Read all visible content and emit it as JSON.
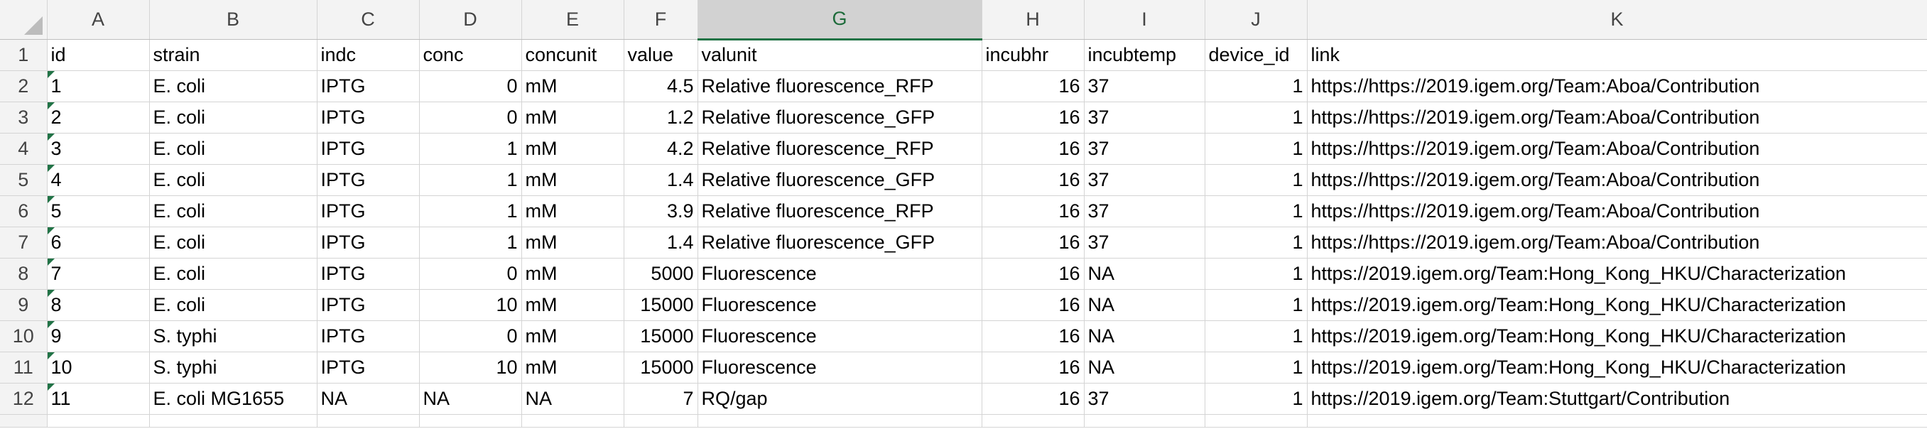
{
  "sheet": {
    "columns": [
      "A",
      "B",
      "C",
      "D",
      "E",
      "F",
      "G",
      "H",
      "I",
      "J",
      "K"
    ],
    "selected_column": "G",
    "rows": [
      {
        "n": "1",
        "cells": [
          "id",
          "strain",
          "indc",
          "conc",
          "concunit",
          "value",
          "valunit",
          "incubhr",
          "incubtemp",
          "device_id",
          "link"
        ]
      },
      {
        "n": "2",
        "cells": [
          "1",
          "E. coli",
          "IPTG",
          "0",
          "mM",
          "4.5",
          "Relative fluorescence_RFP",
          "16",
          "37",
          "1",
          "https://https://2019.igem.org/Team:Aboa/Contribution"
        ]
      },
      {
        "n": "3",
        "cells": [
          "2",
          "E. coli",
          "IPTG",
          "0",
          "mM",
          "1.2",
          "Relative fluorescence_GFP",
          "16",
          "37",
          "1",
          "https://https://2019.igem.org/Team:Aboa/Contribution"
        ]
      },
      {
        "n": "4",
        "cells": [
          "3",
          "E. coli",
          "IPTG",
          "1",
          "mM",
          "4.2",
          "Relative fluorescence_RFP",
          "16",
          "37",
          "1",
          "https://https://2019.igem.org/Team:Aboa/Contribution"
        ]
      },
      {
        "n": "5",
        "cells": [
          "4",
          "E. coli",
          "IPTG",
          "1",
          "mM",
          "1.4",
          "Relative fluorescence_GFP",
          "16",
          "37",
          "1",
          "https://https://2019.igem.org/Team:Aboa/Contribution"
        ]
      },
      {
        "n": "6",
        "cells": [
          "5",
          "E. coli",
          "IPTG",
          "1",
          "mM",
          "3.9",
          "Relative fluorescence_RFP",
          "16",
          "37",
          "1",
          "https://https://2019.igem.org/Team:Aboa/Contribution"
        ]
      },
      {
        "n": "7",
        "cells": [
          "6",
          "E. coli",
          "IPTG",
          "1",
          "mM",
          "1.4",
          "Relative fluorescence_GFP",
          "16",
          "37",
          "1",
          "https://https://2019.igem.org/Team:Aboa/Contribution"
        ]
      },
      {
        "n": "8",
        "cells": [
          "7",
          "E. coli",
          "IPTG",
          "0",
          "mM",
          "5000",
          "Fluorescence",
          "16",
          "NA",
          "1",
          "https://2019.igem.org/Team:Hong_Kong_HKU/Characterization"
        ]
      },
      {
        "n": "9",
        "cells": [
          "8",
          "E. coli",
          "IPTG",
          "10",
          "mM",
          "15000",
          "Fluorescence",
          "16",
          "NA",
          "1",
          "https://2019.igem.org/Team:Hong_Kong_HKU/Characterization"
        ]
      },
      {
        "n": "10",
        "cells": [
          "9",
          "S. typhi",
          "IPTG",
          "0",
          "mM",
          "15000",
          "Fluorescence",
          "16",
          "NA",
          "1",
          "https://2019.igem.org/Team:Hong_Kong_HKU/Characterization"
        ]
      },
      {
        "n": "11",
        "cells": [
          "10",
          "S. typhi",
          "IPTG",
          "10",
          "mM",
          "15000",
          "Fluorescence",
          "16",
          "NA",
          "1",
          "https://2019.igem.org/Team:Hong_Kong_HKU/Characterization"
        ]
      },
      {
        "n": "12",
        "cells": [
          "11",
          "E. coli MG1655",
          "NA",
          "NA",
          "NA",
          "7",
          "RQ/gap",
          "16",
          "37",
          "1",
          "https://2019.igem.org/Team:Stuttgart/Contribution"
        ]
      }
    ]
  },
  "colors": {
    "header_bg": "#f3f3f3",
    "selected_header_bg": "#d2d2d2",
    "selected_accent": "#217346",
    "gridline": "#d4d4d4"
  },
  "icons": {
    "corner": "select-all-triangle",
    "cell_marker": "number-stored-as-text-indicator"
  }
}
